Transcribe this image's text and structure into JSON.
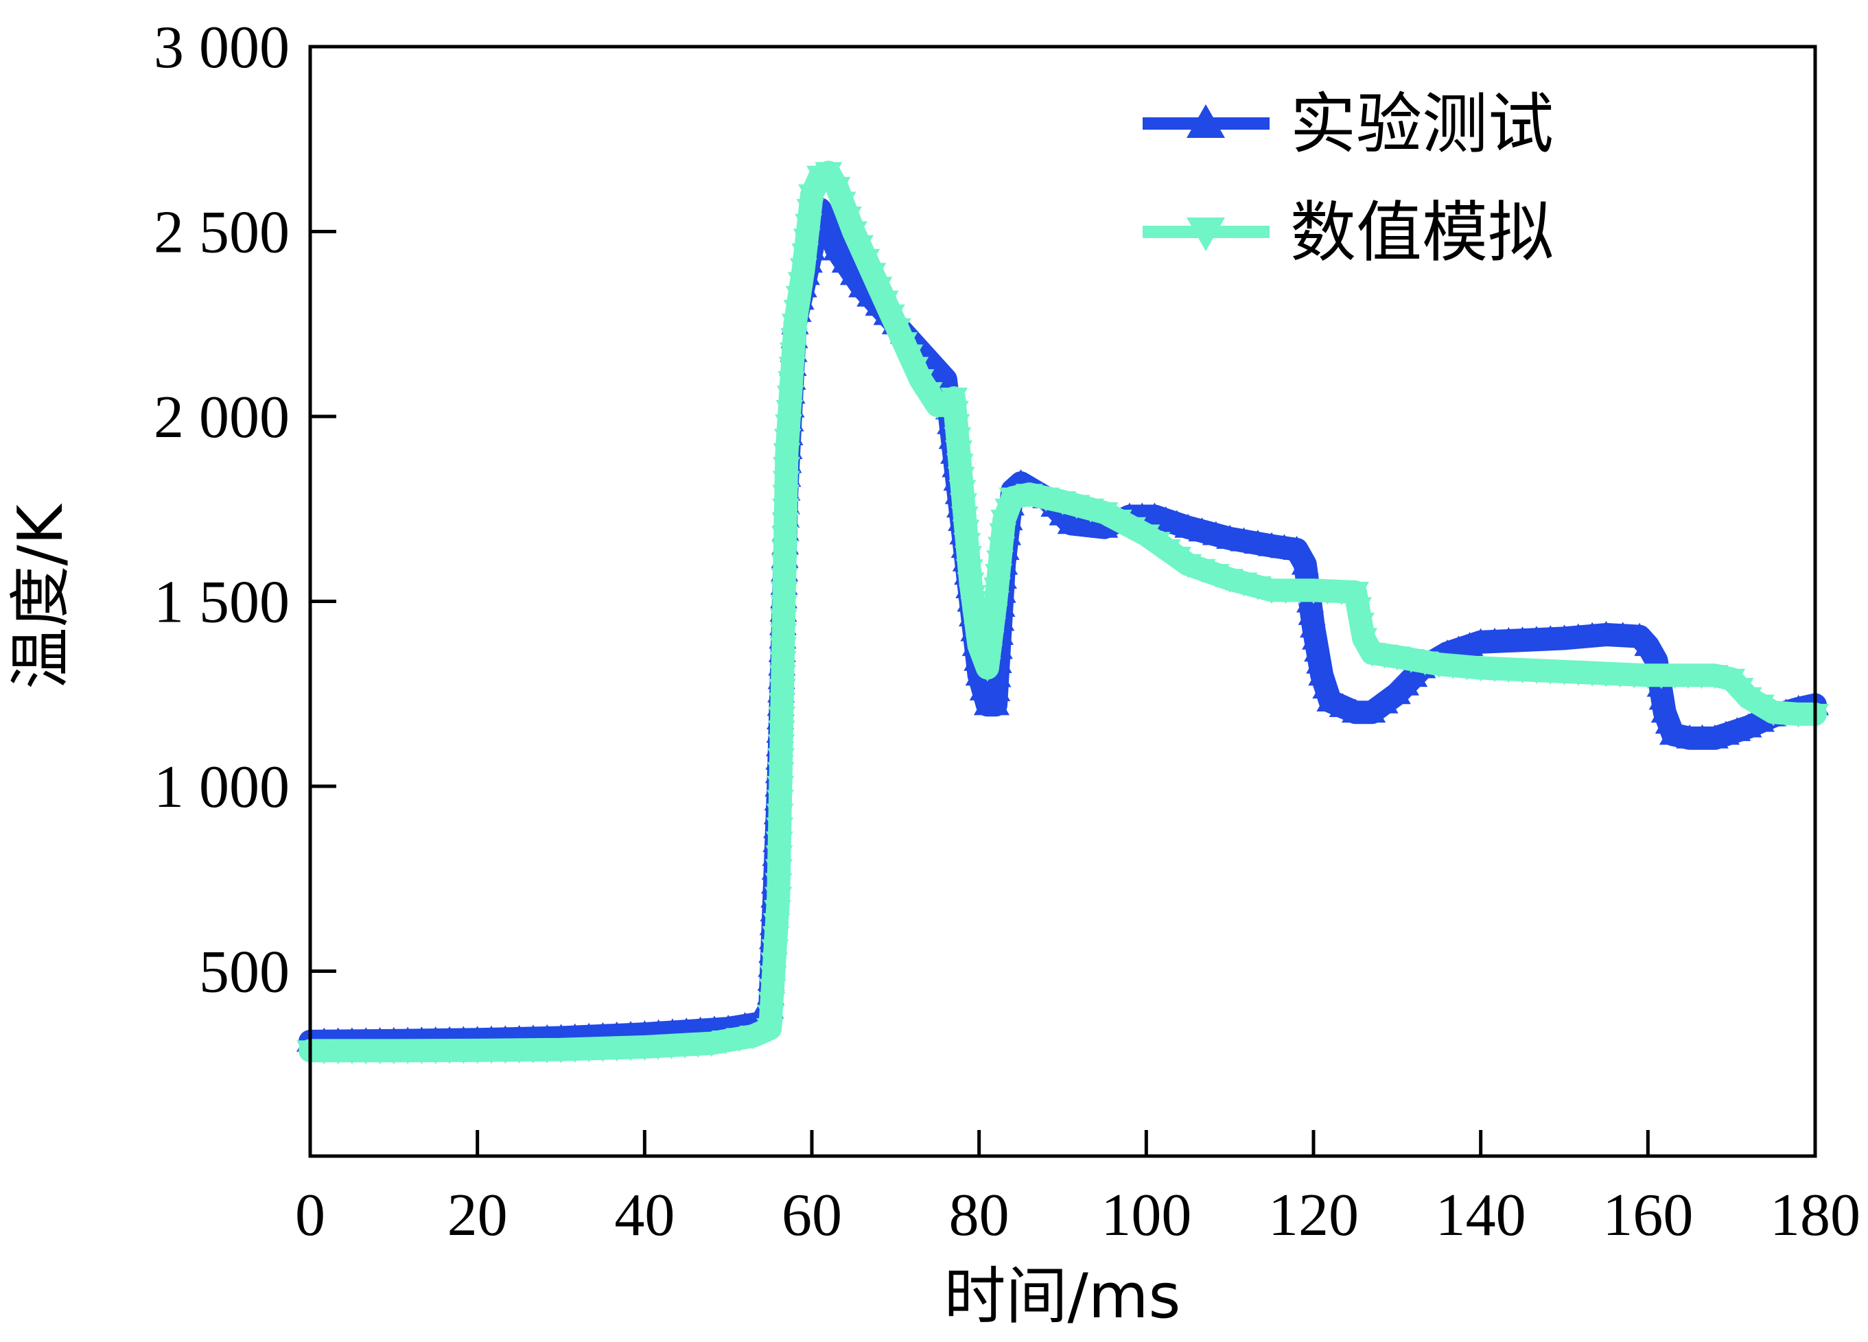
{
  "chart_data": {
    "type": "line",
    "title": "",
    "xlabel": "时间/ms",
    "ylabel": "温度/K",
    "xlim": [
      0,
      180
    ],
    "ylim": [
      0,
      3000
    ],
    "x_ticks": [
      0,
      20,
      40,
      60,
      80,
      100,
      120,
      140,
      160,
      180
    ],
    "y_ticks": [
      500,
      1000,
      1500,
      2000,
      2500,
      3000
    ],
    "x_tick_labels": [
      "0",
      "20",
      "40",
      "60",
      "80",
      "100",
      "120",
      "140",
      "160",
      "180"
    ],
    "y_tick_labels": [
      "500",
      "1 000",
      "1 500",
      "2 000",
      "2 500",
      "3 000"
    ],
    "grid": false,
    "legend_position": "top-right",
    "series": [
      {
        "name": "实验测试",
        "color": "#2149e6",
        "marker": "triangle-up",
        "points": [
          [
            0,
            310
          ],
          [
            10,
            312
          ],
          [
            20,
            315
          ],
          [
            30,
            320
          ],
          [
            40,
            330
          ],
          [
            50,
            345
          ],
          [
            54,
            360
          ],
          [
            55,
            400
          ],
          [
            56,
            1000
          ],
          [
            57,
            1800
          ],
          [
            58,
            2250
          ],
          [
            59,
            2350
          ],
          [
            60,
            2450
          ],
          [
            61,
            2560
          ],
          [
            63,
            2450
          ],
          [
            66,
            2350
          ],
          [
            70,
            2250
          ],
          [
            74,
            2150
          ],
          [
            76,
            2100
          ],
          [
            77,
            1900
          ],
          [
            79,
            1500
          ],
          [
            80,
            1300
          ],
          [
            81,
            1220
          ],
          [
            82,
            1220
          ],
          [
            83,
            1600
          ],
          [
            84,
            1800
          ],
          [
            85,
            1820
          ],
          [
            88,
            1780
          ],
          [
            91,
            1710
          ],
          [
            95,
            1700
          ],
          [
            98,
            1730
          ],
          [
            101,
            1730
          ],
          [
            105,
            1700
          ],
          [
            110,
            1670
          ],
          [
            115,
            1650
          ],
          [
            118,
            1640
          ],
          [
            119,
            1600
          ],
          [
            120,
            1430
          ],
          [
            121,
            1300
          ],
          [
            122,
            1230
          ],
          [
            125,
            1200
          ],
          [
            127,
            1200
          ],
          [
            130,
            1250
          ],
          [
            133,
            1320
          ],
          [
            136,
            1360
          ],
          [
            140,
            1390
          ],
          [
            145,
            1395
          ],
          [
            150,
            1400
          ],
          [
            155,
            1410
          ],
          [
            159,
            1405
          ],
          [
            160,
            1380
          ],
          [
            161,
            1340
          ],
          [
            162,
            1200
          ],
          [
            163,
            1140
          ],
          [
            165,
            1130
          ],
          [
            168,
            1130
          ],
          [
            172,
            1160
          ],
          [
            175,
            1190
          ],
          [
            178,
            1210
          ],
          [
            180,
            1220
          ]
        ]
      },
      {
        "name": "数值模拟",
        "color": "#6ff5c6",
        "marker": "triangle-down",
        "points": [
          [
            0,
            285
          ],
          [
            10,
            285
          ],
          [
            20,
            286
          ],
          [
            30,
            288
          ],
          [
            40,
            295
          ],
          [
            48,
            305
          ],
          [
            53,
            325
          ],
          [
            55,
            345
          ],
          [
            56,
            700
          ],
          [
            57,
            1900
          ],
          [
            58,
            2250
          ],
          [
            59,
            2400
          ],
          [
            60,
            2600
          ],
          [
            61,
            2650
          ],
          [
            62,
            2660
          ],
          [
            63,
            2620
          ],
          [
            65,
            2500
          ],
          [
            68,
            2350
          ],
          [
            71,
            2200
          ],
          [
            73,
            2100
          ],
          [
            75,
            2030
          ],
          [
            76,
            2030
          ],
          [
            77,
            2050
          ],
          [
            78,
            1800
          ],
          [
            79,
            1550
          ],
          [
            80,
            1380
          ],
          [
            81,
            1320
          ],
          [
            82,
            1500
          ],
          [
            83,
            1720
          ],
          [
            84,
            1780
          ],
          [
            86,
            1790
          ],
          [
            90,
            1770
          ],
          [
            95,
            1740
          ],
          [
            100,
            1680
          ],
          [
            105,
            1600
          ],
          [
            110,
            1560
          ],
          [
            115,
            1530
          ],
          [
            120,
            1530
          ],
          [
            125,
            1525
          ],
          [
            126,
            1400
          ],
          [
            127,
            1360
          ],
          [
            130,
            1350
          ],
          [
            135,
            1330
          ],
          [
            140,
            1320
          ],
          [
            150,
            1310
          ],
          [
            160,
            1300
          ],
          [
            168,
            1300
          ],
          [
            170,
            1290
          ],
          [
            172,
            1240
          ],
          [
            175,
            1200
          ],
          [
            178,
            1195
          ],
          [
            180,
            1195
          ]
        ]
      }
    ]
  }
}
